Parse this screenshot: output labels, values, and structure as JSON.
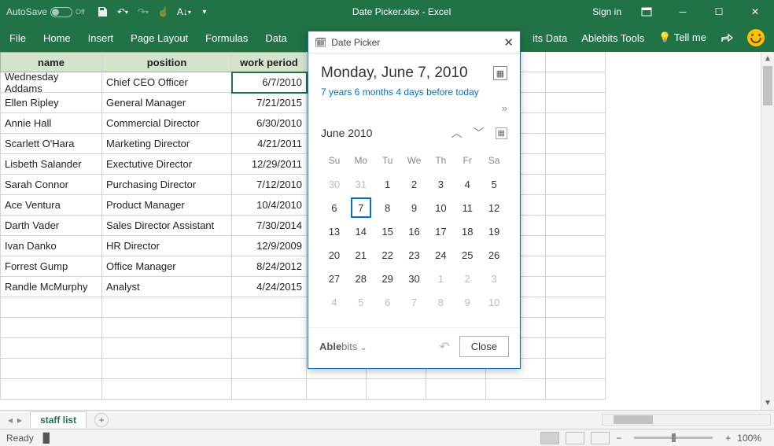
{
  "titlebar": {
    "autosave": "AutoSave",
    "toggle_label": "Off",
    "doc": "Date Picker.xlsx  -  Excel",
    "signin": "Sign in"
  },
  "ribbon": {
    "tabs": [
      "File",
      "Home",
      "Insert",
      "Page Layout",
      "Formulas",
      "Data"
    ],
    "right": [
      "its Data",
      "Ablebits Tools",
      "Tell me"
    ]
  },
  "table": {
    "headers": [
      "name",
      "position",
      "work period"
    ],
    "rows": [
      [
        "Wednesday Addams",
        "Chief CEO Officer",
        "6/7/2010"
      ],
      [
        "Ellen Ripley",
        "General Manager",
        "7/21/2015"
      ],
      [
        "Annie Hall",
        "Commercial Director",
        "6/30/2010"
      ],
      [
        "Scarlett O'Hara",
        "Marketing Director",
        "4/21/2011"
      ],
      [
        "Lisbeth Salander",
        "Exectutive Director",
        "12/29/2011"
      ],
      [
        "Sarah Connor",
        "Purchasing Director",
        "7/12/2010"
      ],
      [
        "Ace Ventura",
        "Product Manager",
        "10/4/2010"
      ],
      [
        "Darth Vader",
        "Sales Director Assistant",
        "7/30/2014"
      ],
      [
        "Ivan Danko",
        "HR Director",
        "12/9/2009"
      ],
      [
        "Forrest Gump",
        "Office Manager",
        "8/24/2012"
      ],
      [
        "Randle McMurphy",
        "Analyst",
        "4/24/2015"
      ]
    ],
    "selected_row": 0
  },
  "picker": {
    "title": "Date Picker",
    "full_date": "Monday, June 7, 2010",
    "diff": "7 years 6 months 4 days before today",
    "month_label": "June 2010",
    "dow": [
      "Su",
      "Mo",
      "Tu",
      "We",
      "Th",
      "Fr",
      "Sa"
    ],
    "weeks": [
      [
        {
          "n": 30,
          "o": true
        },
        {
          "n": 31,
          "o": true
        },
        {
          "n": 1
        },
        {
          "n": 2
        },
        {
          "n": 3
        },
        {
          "n": 4
        },
        {
          "n": 5
        }
      ],
      [
        {
          "n": 6
        },
        {
          "n": 7,
          "sel": true
        },
        {
          "n": 8
        },
        {
          "n": 9
        },
        {
          "n": 10
        },
        {
          "n": 11
        },
        {
          "n": 12
        }
      ],
      [
        {
          "n": 13
        },
        {
          "n": 14
        },
        {
          "n": 15
        },
        {
          "n": 16
        },
        {
          "n": 17
        },
        {
          "n": 18
        },
        {
          "n": 19
        }
      ],
      [
        {
          "n": 20
        },
        {
          "n": 21
        },
        {
          "n": 22
        },
        {
          "n": 23
        },
        {
          "n": 24
        },
        {
          "n": 25
        },
        {
          "n": 26
        }
      ],
      [
        {
          "n": 27
        },
        {
          "n": 28
        },
        {
          "n": 29
        },
        {
          "n": 30
        },
        {
          "n": 1,
          "o": true
        },
        {
          "n": 2,
          "o": true
        },
        {
          "n": 3,
          "o": true
        }
      ],
      [
        {
          "n": 4,
          "o": true
        },
        {
          "n": 5,
          "o": true
        },
        {
          "n": 6,
          "o": true
        },
        {
          "n": 7,
          "o": true
        },
        {
          "n": 8,
          "o": true
        },
        {
          "n": 9,
          "o": true
        },
        {
          "n": 10,
          "o": true
        }
      ]
    ],
    "brand_bold": "Able",
    "brand_rest": "bits",
    "close": "Close"
  },
  "tabbar": {
    "sheet": "staff list"
  },
  "status": {
    "ready": "Ready",
    "zoom": "100%"
  }
}
